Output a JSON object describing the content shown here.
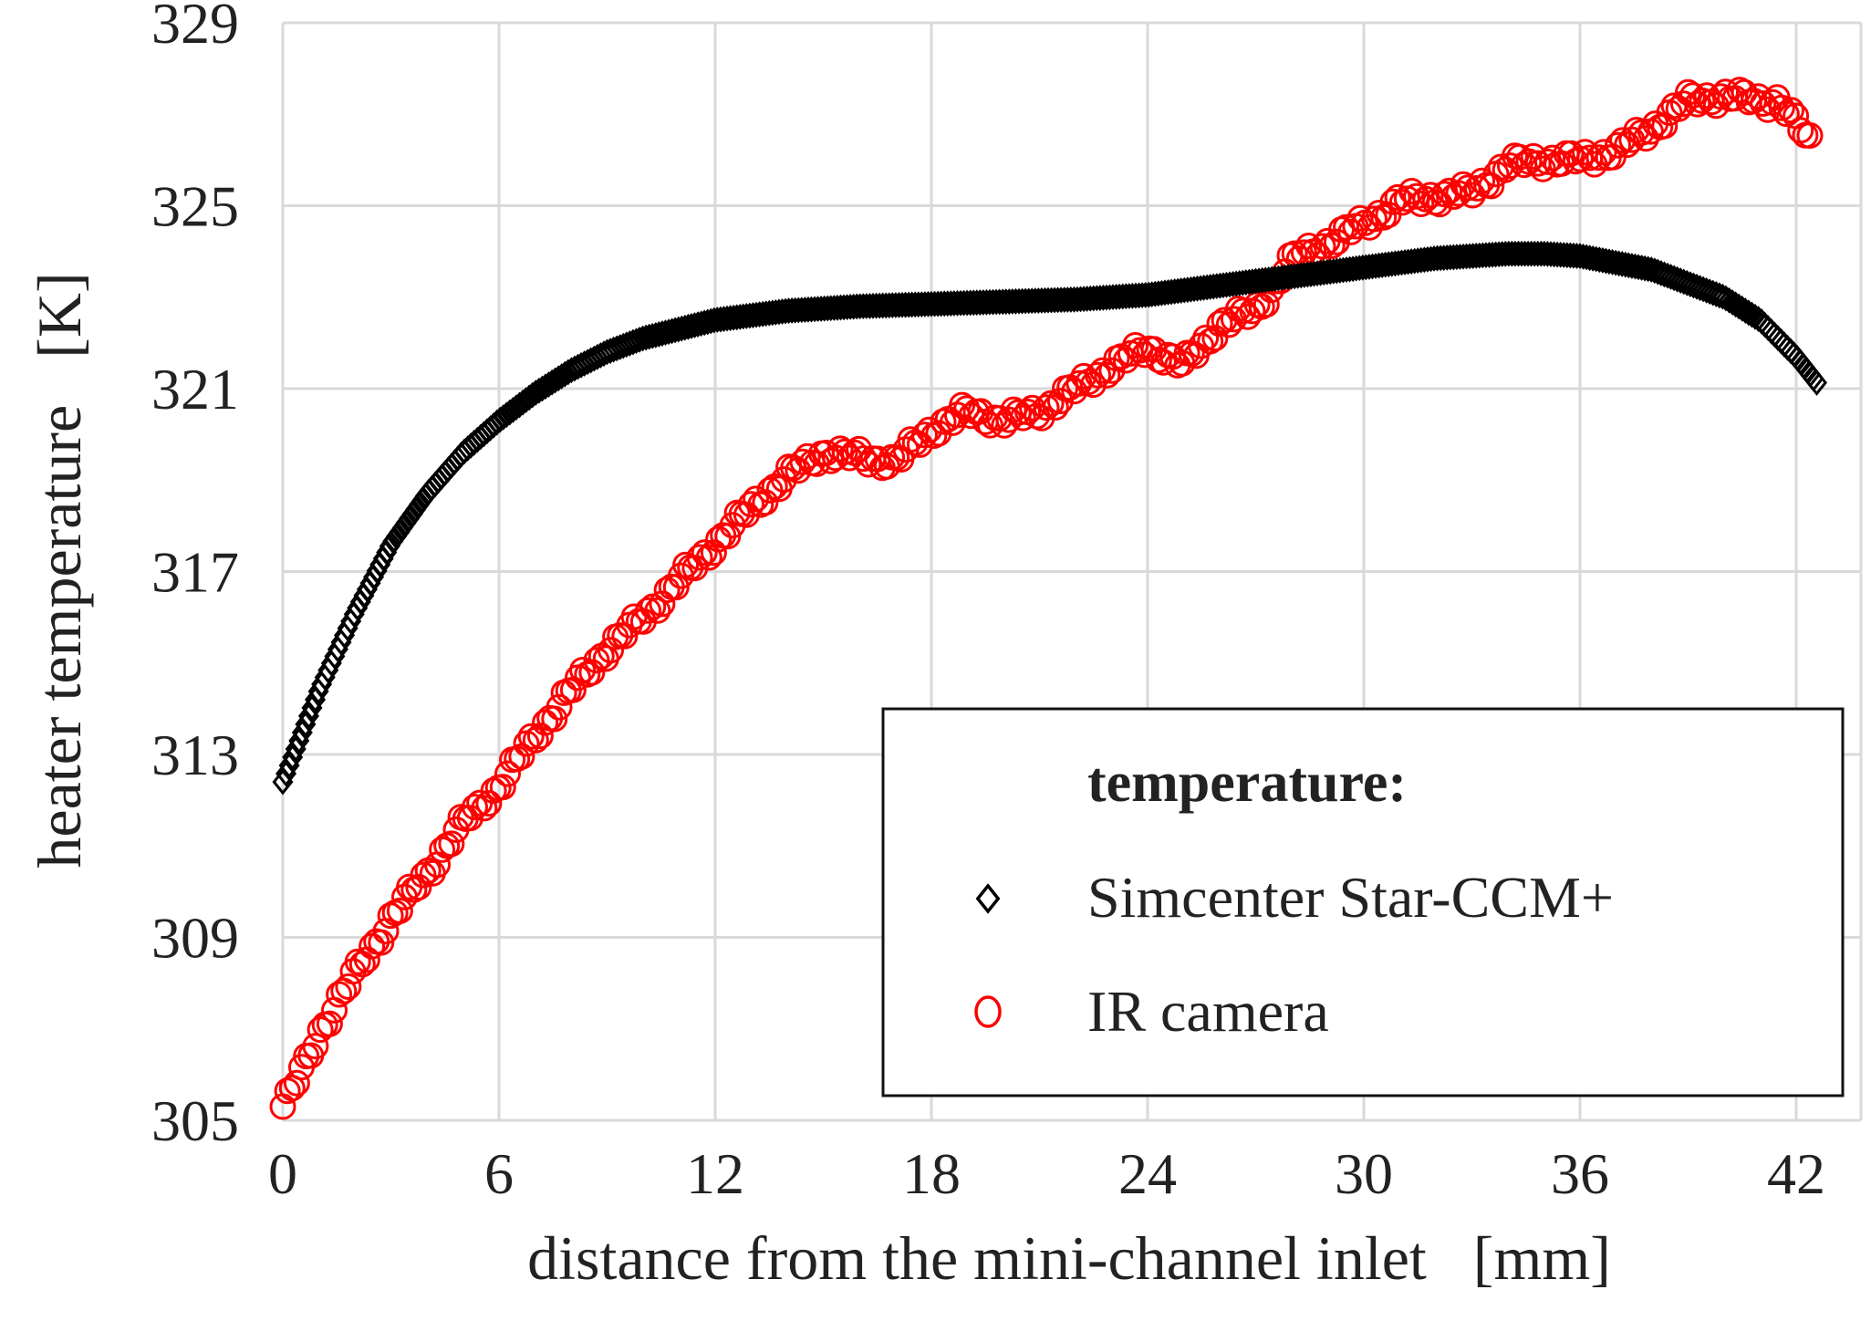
{
  "chart_data": {
    "type": "scatter",
    "xlabel": "distance from the mini-channel inlet   [mm]",
    "ylabel": "heater temperature   [K]",
    "xlim": [
      0,
      43
    ],
    "ylim": [
      305,
      329
    ],
    "x_ticks": [
      0,
      6,
      12,
      18,
      24,
      30,
      36,
      42
    ],
    "y_ticks": [
      305,
      309,
      313,
      317,
      321,
      325,
      329
    ],
    "x_tick_labels": [
      "0",
      "6",
      "12",
      "18",
      "24",
      "30",
      "36",
      "42"
    ],
    "y_tick_labels": [
      "305",
      "309",
      "313",
      "317",
      "321",
      "325",
      "329"
    ],
    "grid": true,
    "legend": {
      "title": "temperature:",
      "placement": "bottom-right",
      "entries": [
        "Simcenter Star-CCM+",
        "IR camera"
      ]
    },
    "series": [
      {
        "name": "Simcenter Star-CCM+",
        "marker": "diamond",
        "color": "#000000",
        "x": [
          0,
          1,
          2,
          3,
          4,
          5,
          6,
          7,
          8,
          9,
          10,
          11,
          12,
          13,
          14,
          15,
          16,
          18,
          20,
          22,
          24,
          26,
          28,
          30,
          32,
          34,
          35,
          36,
          38,
          40,
          41,
          42,
          42.6
        ],
        "y": [
          312.4,
          314.4,
          316.1,
          317.6,
          318.7,
          319.6,
          320.3,
          320.9,
          321.4,
          321.8,
          322.1,
          322.3,
          322.5,
          322.6,
          322.7,
          322.75,
          322.8,
          322.85,
          322.9,
          322.95,
          323.05,
          323.25,
          323.45,
          323.65,
          323.85,
          323.95,
          323.95,
          323.9,
          323.6,
          323.0,
          322.5,
          321.7,
          321.1
        ]
      },
      {
        "name": "IR camera",
        "marker": "circle",
        "color": "#ff0000",
        "x": [
          0,
          0.5,
          1,
          2,
          3,
          4,
          5,
          6,
          7,
          8,
          9,
          10,
          11,
          12,
          13,
          14,
          15,
          16,
          17,
          18,
          19,
          20,
          21,
          22,
          23,
          24,
          25,
          26,
          27,
          28,
          29,
          30,
          31,
          32,
          33,
          34,
          35,
          36,
          37,
          38,
          39,
          40,
          41,
          41.5,
          42,
          42.5
        ],
        "y": [
          305.3,
          306.0,
          306.9,
          308.2,
          309.4,
          310.4,
          311.5,
          312.3,
          313.4,
          314.4,
          315.3,
          316.0,
          316.8,
          317.6,
          318.4,
          319.1,
          319.6,
          319.5,
          319.4,
          320.1,
          320.5,
          320.3,
          320.5,
          321.0,
          321.5,
          321.9,
          321.5,
          322.4,
          322.7,
          323.8,
          324.2,
          324.6,
          325.1,
          325.2,
          325.3,
          325.9,
          326.0,
          326.0,
          326.2,
          326.7,
          327.3,
          327.4,
          327.3,
          327.3,
          326.8,
          326.3
        ]
      }
    ]
  }
}
